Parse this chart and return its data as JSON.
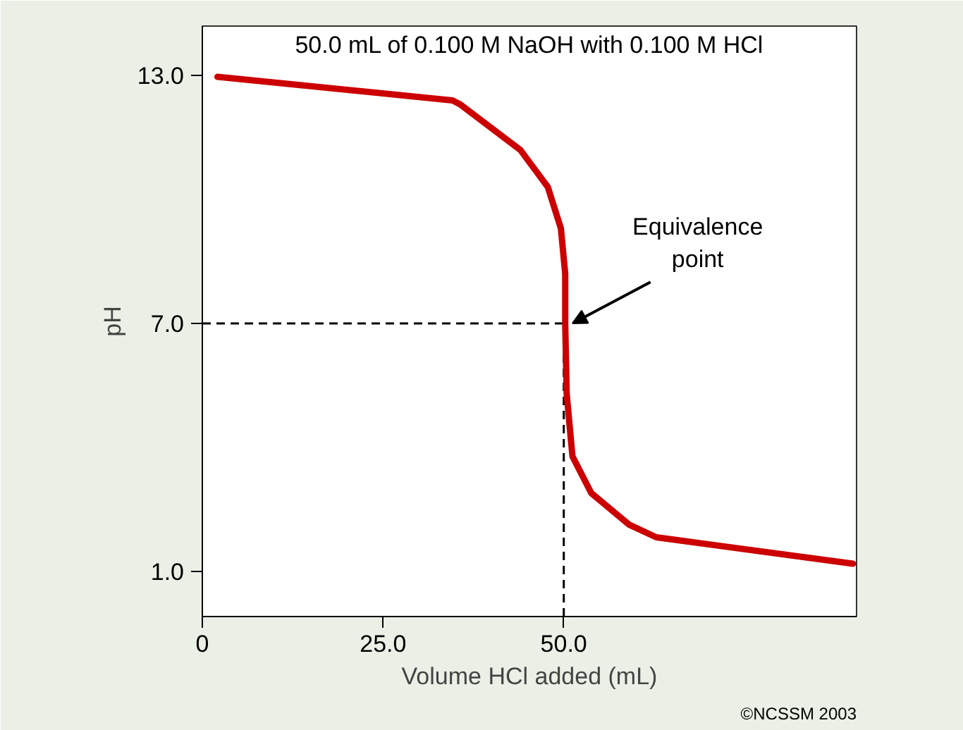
{
  "chart_data": {
    "type": "line",
    "title": "50.0 mL of 0.100 M NaOH with 0.100 M HCl",
    "xlabel": "Volume HCl added (mL)",
    "ylabel": "pH",
    "xlim": [
      0,
      90.5
    ],
    "ylim": [
      -0.1,
      14.2
    ],
    "xticks": [
      {
        "value": 0,
        "label": "0"
      },
      {
        "value": 25,
        "label": "25.0"
      },
      {
        "value": 50,
        "label": "50.0"
      }
    ],
    "yticks": [
      {
        "value": 1,
        "label": "1.0"
      },
      {
        "value": 7,
        "label": "7.0"
      },
      {
        "value": 13,
        "label": "13.0"
      }
    ],
    "grid": false,
    "marker": "none",
    "line_style": "solid",
    "x": [
      2.1,
      34.6,
      35.7,
      44.0,
      47.8,
      49.6,
      50.2,
      50.2,
      50.4,
      51.2,
      53.8,
      59.0,
      62.8,
      90.0
    ],
    "series": [
      {
        "color": "#cc0000",
        "values": [
          12.97,
          12.4,
          12.3,
          11.2,
          10.3,
          9.3,
          8.2,
          7.0,
          5.3,
          3.78,
          2.89,
          2.13,
          1.82,
          1.18
        ]
      }
    ],
    "ref_lines": [
      {
        "axis": "x",
        "value": 50,
        "label": null,
        "color": "#000000",
        "line_style": "dashed"
      },
      {
        "axis": "y",
        "value": 7,
        "label": null,
        "color": "#000000",
        "line_style": "dashed"
      }
    ],
    "annotations": [
      {
        "text": "Equivalence\npoint",
        "x": 50,
        "y": 7
      },
      "©NCSSM 2003"
    ]
  }
}
